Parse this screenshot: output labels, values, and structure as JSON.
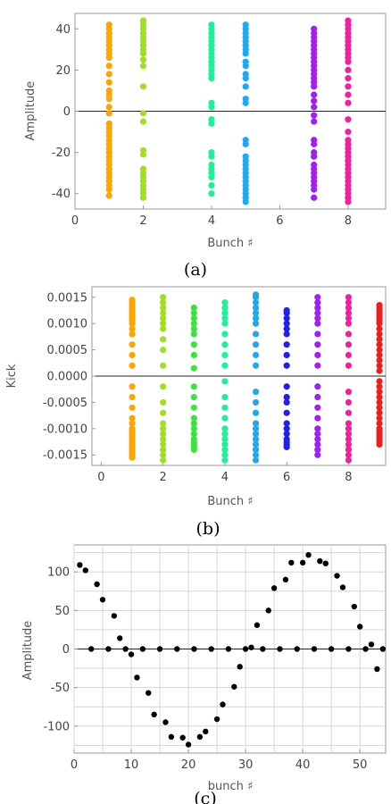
{
  "chart_data": [
    {
      "panel": "(a)",
      "type": "scatter",
      "xlabel": "Bunch ♯",
      "ylabel": "Amplitude",
      "xlim": [
        0,
        9.1
      ],
      "ylim": [
        -47.5,
        47.5
      ],
      "xticks": [
        0,
        2,
        4,
        6,
        8
      ],
      "yticks": [
        -40,
        -20,
        0,
        20,
        40
      ],
      "grid": false,
      "zero_line": true,
      "series": [
        {
          "x": 1,
          "color": "#FFA500",
          "y": [
            -41,
            -38,
            -36,
            -34,
            -32,
            -30,
            -28,
            -26,
            -24,
            -22,
            -20,
            -18,
            -16,
            -14,
            -12,
            -10,
            -8,
            -6,
            -1,
            2,
            6,
            8,
            10,
            14,
            18,
            22,
            26,
            28,
            30,
            32,
            34,
            36,
            38,
            40,
            42
          ]
        },
        {
          "x": 2,
          "color": "#A0E020",
          "y": [
            -42,
            -40,
            -38,
            -36,
            -34,
            -32,
            -30,
            -28,
            -21,
            -19,
            -5,
            -1,
            12,
            22,
            25,
            28,
            30,
            32,
            34,
            36,
            38,
            40,
            42,
            44
          ]
        },
        {
          "x": 4,
          "color": "#20F09A",
          "y": [
            -40,
            -36,
            -32,
            -30,
            -28,
            -26,
            -22,
            -20,
            -6,
            -4,
            2,
            4,
            16,
            18,
            20,
            22,
            24,
            26,
            28,
            30,
            32,
            34,
            36,
            38,
            40,
            42
          ]
        },
        {
          "x": 5,
          "color": "#20A8F0",
          "y": [
            -44,
            -42,
            -40,
            -38,
            -36,
            -34,
            -32,
            -30,
            -28,
            -26,
            -24,
            -22,
            -16,
            -14,
            4,
            6,
            12,
            16,
            18,
            22,
            24,
            28,
            30,
            32,
            34,
            36,
            38,
            40,
            42
          ]
        },
        {
          "x": 7,
          "color": "#A020F0",
          "y": [
            -42,
            -38,
            -36,
            -34,
            -32,
            -30,
            -28,
            -26,
            -22,
            -20,
            -16,
            -14,
            -5,
            -2,
            2,
            5,
            8,
            12,
            14,
            16,
            18,
            20,
            22,
            24,
            26,
            28,
            30,
            32,
            34,
            36,
            38,
            40
          ]
        },
        {
          "x": 8,
          "color": "#F020A0",
          "y": [
            -44,
            -42,
            -40,
            -38,
            -36,
            -34,
            -32,
            -30,
            -28,
            -26,
            -24,
            -22,
            -20,
            -18,
            -16,
            -14,
            -10,
            -4,
            4,
            8,
            12,
            16,
            20,
            24,
            26,
            28,
            30,
            32,
            34,
            36,
            38,
            40,
            42,
            44
          ]
        }
      ]
    },
    {
      "panel": "(b)",
      "type": "scatter",
      "xlabel": "Bunch ♯",
      "ylabel": "Kick",
      "xlim": [
        -0.3,
        9.2
      ],
      "ylim": [
        -0.0017,
        0.0017
      ],
      "xticks": [
        0,
        2,
        4,
        6,
        8
      ],
      "yticks": [
        -0.0015,
        -0.001,
        -0.0005,
        0,
        0.0005,
        0.001,
        0.0015
      ],
      "ytick_labels": [
        "-0.0015",
        "-0.0010",
        "-0.0005",
        "0.0000",
        "0.0005",
        "0.0010",
        "0.0015"
      ],
      "grid": false,
      "zero_line": true,
      "series": [
        {
          "x": 1,
          "color": "#FFA500",
          "y": [
            -0.00155,
            -0.0015,
            -0.00145,
            -0.0014,
            -0.00135,
            -0.0013,
            -0.00125,
            -0.0012,
            -0.00115,
            -0.0011,
            -0.00105,
            -0.001,
            -0.0009,
            -0.0008,
            -0.0006,
            -0.0004,
            -0.0002,
            0.0002,
            0.0004,
            0.0006,
            0.0008,
            0.0009,
            0.001,
            0.00105,
            0.0011,
            0.00115,
            0.0012,
            0.00125,
            0.0013,
            0.00135,
            0.0014,
            0.00145
          ]
        },
        {
          "x": 2,
          "color": "#A0E020",
          "y": [
            -0.0016,
            -0.0015,
            -0.0014,
            -0.0013,
            -0.0012,
            -0.0011,
            -0.001,
            -0.0009,
            -0.0007,
            -0.0005,
            -0.0002,
            0.0002,
            0.0005,
            0.0007,
            0.0009,
            0.001,
            0.0011,
            0.0012,
            0.0013,
            0.0014,
            0.0015
          ]
        },
        {
          "x": 3,
          "color": "#40E040",
          "y": [
            -0.0014,
            -0.00135,
            -0.0013,
            -0.00125,
            -0.0012,
            -0.0011,
            -0.001,
            -0.0009,
            -0.0008,
            -0.0006,
            -0.0004,
            -0.0002,
            0.00015,
            0.0004,
            0.0006,
            0.0008,
            0.0009,
            0.001,
            0.0011,
            0.0012,
            0.0013
          ]
        },
        {
          "x": 4,
          "color": "#20F09A",
          "y": [
            -0.0016,
            -0.0015,
            -0.0014,
            -0.0013,
            -0.0012,
            -0.0011,
            -0.001,
            -0.0008,
            -0.0006,
            -0.0004,
            -0.0001,
            0.0002,
            0.0004,
            0.0006,
            0.0008,
            0.001,
            0.0011,
            0.0012,
            0.0013,
            0.0014
          ]
        },
        {
          "x": 5,
          "color": "#20A8F0",
          "y": [
            -0.0016,
            -0.0015,
            -0.0014,
            -0.0013,
            -0.0012,
            -0.0011,
            -0.001,
            -0.0009,
            -0.0007,
            -0.0005,
            -0.0003,
            0.0002,
            0.0004,
            0.0006,
            0.0008,
            0.001,
            0.0011,
            0.0012,
            0.0013,
            0.0014,
            0.0015,
            0.00155
          ]
        },
        {
          "x": 6,
          "color": "#2020E8",
          "y": [
            -0.00135,
            -0.0013,
            -0.00125,
            -0.0012,
            -0.0011,
            -0.001,
            -0.0009,
            -0.0007,
            -0.0005,
            -0.0004,
            -0.0002,
            0.0002,
            0.0004,
            0.0006,
            0.0008,
            0.0009,
            0.001,
            0.0011,
            0.0012,
            0.00125
          ]
        },
        {
          "x": 7,
          "color": "#A020F0",
          "y": [
            -0.0015,
            -0.0014,
            -0.0013,
            -0.0012,
            -0.0011,
            -0.001,
            -0.0008,
            -0.0006,
            -0.0004,
            -0.0002,
            0.0002,
            0.0004,
            0.0006,
            0.0008,
            0.001,
            0.0011,
            0.0012,
            0.0013,
            0.0014,
            0.0015
          ]
        },
        {
          "x": 8,
          "color": "#F020A0",
          "y": [
            -0.0016,
            -0.0015,
            -0.0014,
            -0.0013,
            -0.0012,
            -0.0011,
            -0.001,
            -0.0009,
            -0.0007,
            -0.0005,
            -0.0003,
            0.0002,
            0.0004,
            0.0006,
            0.0008,
            0.001,
            0.0011,
            0.0012,
            0.0013,
            0.0014,
            0.0015
          ]
        },
        {
          "x": 9,
          "color": "#E82020",
          "y": [
            -0.0013,
            -0.00125,
            -0.0012,
            -0.00115,
            -0.0011,
            -0.00105,
            -0.001,
            -0.0009,
            -0.0008,
            -0.0007,
            -0.0006,
            -0.0005,
            -0.0004,
            -0.0003,
            -0.0002,
            -0.0001,
            0.0001,
            0.0002,
            0.0003,
            0.0004,
            0.0005,
            0.0006,
            0.0007,
            0.0008,
            0.0009,
            0.001,
            0.00105,
            0.0011,
            0.00115,
            0.0012,
            0.00125,
            0.0013,
            0.00135
          ]
        }
      ]
    },
    {
      "panel": "(c)",
      "type": "scatter",
      "xlabel": "bunch ♯",
      "ylabel": "Amplitude",
      "xlim": [
        0,
        54.5
      ],
      "ylim": [
        -135,
        135
      ],
      "xticks": [
        0,
        10,
        20,
        30,
        40,
        50
      ],
      "yticks": [
        -100,
        -50,
        0,
        50,
        100
      ],
      "grid": true,
      "zero_line": true,
      "series": [
        {
          "color": "#000000",
          "points": [
            [
              1,
              109
            ],
            [
              2,
              102
            ],
            [
              3,
              0
            ],
            [
              4,
              84
            ],
            [
              5,
              64
            ],
            [
              6,
              0
            ],
            [
              7,
              43
            ],
            [
              8,
              14
            ],
            [
              9,
              0
            ],
            [
              10,
              -7
            ],
            [
              11,
              -37
            ],
            [
              12,
              0
            ],
            [
              13,
              -57
            ],
            [
              14,
              -85
            ],
            [
              15,
              0
            ],
            [
              16,
              -95
            ],
            [
              17,
              -114
            ],
            [
              18,
              0
            ],
            [
              19,
              -115
            ],
            [
              20,
              -124
            ],
            [
              21,
              0
            ],
            [
              22,
              -114
            ],
            [
              23,
              -107
            ],
            [
              24,
              0
            ],
            [
              25,
              -91
            ],
            [
              26,
              -72
            ],
            [
              27,
              0
            ],
            [
              28,
              -49
            ],
            [
              29,
              -23
            ],
            [
              30,
              0
            ],
            [
              31,
              2
            ],
            [
              32,
              31
            ],
            [
              33,
              0
            ],
            [
              34,
              50
            ],
            [
              35,
              79
            ],
            [
              36,
              0
            ],
            [
              37,
              90
            ],
            [
              38,
              112
            ],
            [
              39,
              0
            ],
            [
              40,
              112
            ],
            [
              41,
              122
            ],
            [
              42,
              0
            ],
            [
              43,
              114
            ],
            [
              44,
              111
            ],
            [
              45,
              0
            ],
            [
              46,
              95
            ],
            [
              47,
              80
            ],
            [
              48,
              0
            ],
            [
              49,
              55
            ],
            [
              50,
              29
            ],
            [
              51,
              0
            ],
            [
              52,
              6
            ],
            [
              53,
              -26
            ],
            [
              54,
              0
            ]
          ]
        }
      ]
    }
  ],
  "captions": [
    "(a)",
    "(b)",
    "(c)"
  ]
}
